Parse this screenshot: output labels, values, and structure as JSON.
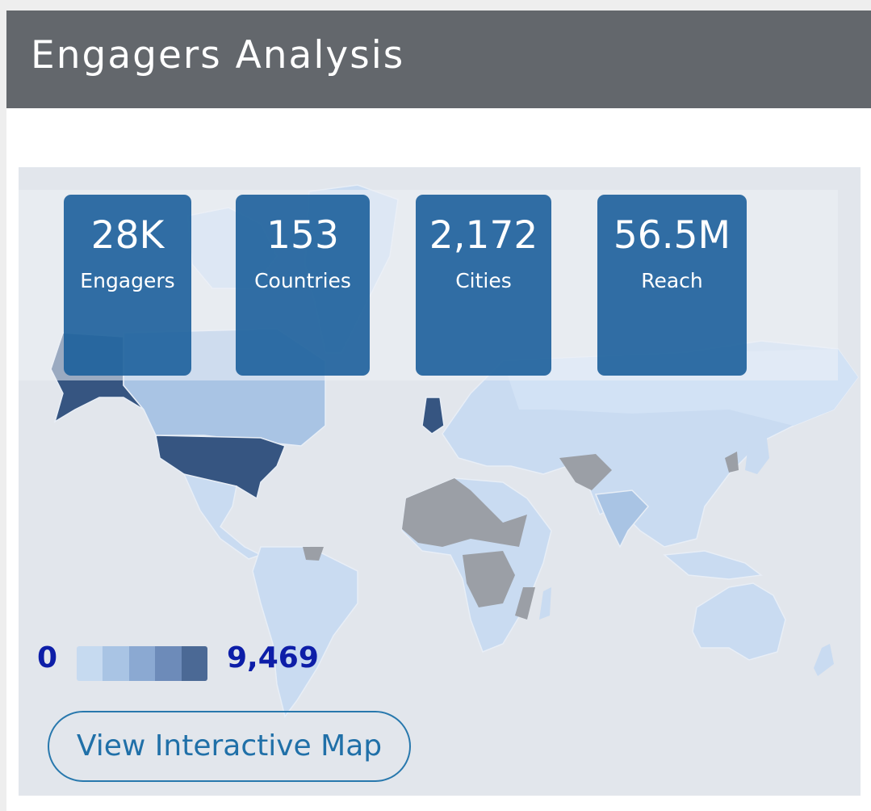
{
  "header": {
    "title": "Engagers Analysis"
  },
  "stats": [
    {
      "value": "28K",
      "label": "Engagers"
    },
    {
      "value": "153",
      "label": "Countries"
    },
    {
      "value": "2,172",
      "label": "Cities"
    },
    {
      "value": "56.5M",
      "label": "Reach"
    }
  ],
  "legend": {
    "min": "0",
    "max": "9,469",
    "colors": [
      "#c6daf0",
      "#a9c4e4",
      "#8ba9d2",
      "#6d8bb9",
      "#4b6995"
    ]
  },
  "map": {
    "base_color": "#c9dbf1",
    "no_data_color": "#9b9fa6",
    "max_color": "#365581",
    "highlighted": [
      "United States",
      "United Kingdom",
      "Alaska",
      "Canada"
    ]
  },
  "button": {
    "label": "View Interactive Map"
  }
}
